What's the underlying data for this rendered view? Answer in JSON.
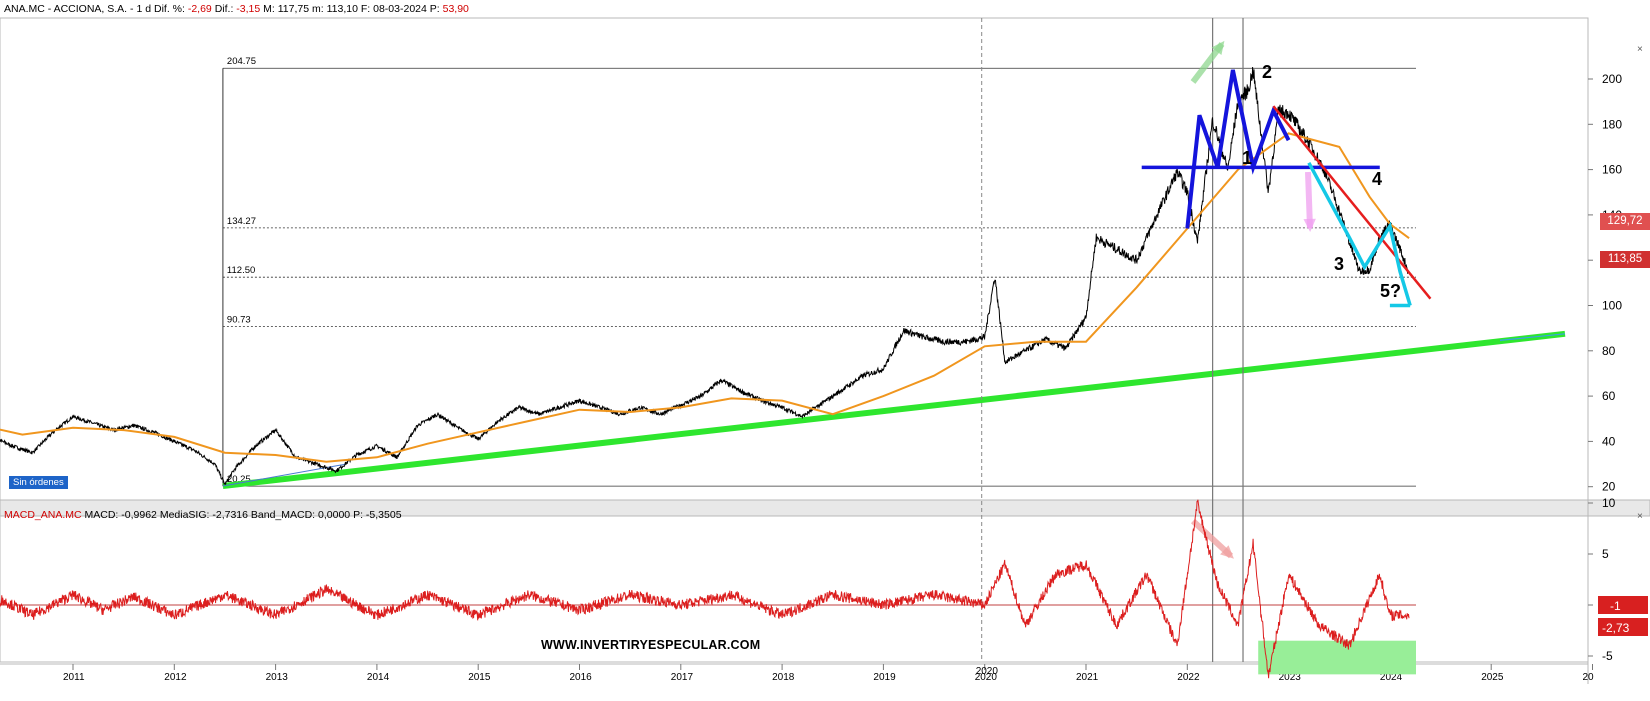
{
  "header": {
    "symbol": "ANA.MC - ACCIONA, S.A. -",
    "timeframe": "1 d",
    "dif_pct_label": "Dif. %:",
    "dif_pct": "-2,69",
    "dif_label": "Dif.:",
    "dif": "-3,15",
    "max_label": "M:",
    "max": "117,75",
    "min_label": "m:",
    "min": "113,10",
    "date_label": "F:",
    "date": "08-03-2024",
    "p_label": "P:",
    "p": "53,90"
  },
  "macd_header": {
    "name": "MACD_ANA.MC",
    "macd_label": "MACD:",
    "macd": "-0,9962",
    "sig_label": "MediaSIG:",
    "sig": "-2,7316",
    "band_label": "Band_MACD:",
    "band": "0,0000",
    "p_label": "P:",
    "p": "-5,3505"
  },
  "badge": "Sin órdenes",
  "watermark": "WWW.INVERTIRYESPECULAR.COM",
  "price_tags": {
    "ma": "129,72",
    "last": "113,85"
  },
  "macd_tags": {
    "macd": "-1",
    "signal": "-2,73"
  },
  "annotations": {
    "w1": "1",
    "w2": "2",
    "w3": "3",
    "w4": "4",
    "w5": "5?"
  },
  "controls": {
    "top": "×",
    "bottom": "×"
  },
  "colors": {
    "price": "#000000",
    "ma": "#f0961e",
    "macd": "#dc1e1e",
    "trend": "#2ee62e",
    "pattern": "#1414dc",
    "wave": "#14c8e6",
    "resistance": "#e61e1e",
    "tag_ma": "#e05050",
    "tag_last": "#d03030"
  },
  "chart_data": [
    {
      "type": "line",
      "title": "",
      "x_ticks": [
        "2011",
        "2012",
        "2013",
        "2014",
        "2015",
        "2016",
        "2017",
        "2018",
        "2019",
        "2020",
        "2021",
        "2022",
        "2023",
        "2024",
        "2025",
        "20"
      ],
      "y_ticks": [
        20,
        40,
        60,
        80,
        100,
        120,
        140,
        160,
        180,
        200
      ],
      "ylim": [
        12,
        212
      ],
      "fib_levels": [
        {
          "label": "204.75",
          "value": 204.75
        },
        {
          "label": "134.27",
          "value": 134.27
        },
        {
          "label": "112.50",
          "value": 112.5
        },
        {
          "label": "90.73",
          "value": 90.73
        },
        {
          "label": "20.25",
          "value": 20.25
        }
      ],
      "series": [
        {
          "x": [
            2010.0,
            2010.2,
            2010.4,
            2010.6,
            2010.8,
            2011.0,
            2011.2,
            2011.4,
            2011.6,
            2011.8,
            2012.0,
            2012.2,
            2012.4,
            2012.5,
            2012.6,
            2012.8,
            2013.0,
            2013.2,
            2013.4,
            2013.6,
            2013.8,
            2014.0,
            2014.2,
            2014.4,
            2014.6,
            2014.8,
            2015.0,
            2015.2,
            2015.4,
            2015.6,
            2015.8,
            2016.0,
            2016.2,
            2016.4,
            2016.6,
            2016.8,
            2017.0,
            2017.2,
            2017.4,
            2017.6,
            2017.8,
            2018.0,
            2018.2,
            2018.4,
            2018.6,
            2018.8,
            2019.0,
            2019.2,
            2019.4,
            2019.6,
            2019.8,
            2020.0,
            2020.1,
            2020.2,
            2020.4,
            2020.6,
            2020.8,
            2021.0,
            2021.1,
            2021.3,
            2021.5,
            2021.7,
            2021.9,
            2022.0,
            2022.1,
            2022.25,
            2022.4,
            2022.5,
            2022.6,
            2022.65,
            2022.8,
            2022.9,
            2023.0,
            2023.2,
            2023.35,
            2023.5,
            2023.6,
            2023.7,
            2023.8,
            2023.9,
            2024.0,
            2024.1,
            2024.19
          ],
          "values": [
            44,
            42,
            38,
            35,
            44,
            51,
            48,
            45,
            47,
            44,
            40,
            36,
            30,
            21,
            28,
            38,
            45,
            33,
            30,
            27,
            34,
            38,
            33,
            47,
            52,
            46,
            41,
            49,
            55,
            52,
            55,
            58,
            55,
            52,
            55,
            52,
            56,
            60,
            67,
            62,
            58,
            55,
            51,
            57,
            63,
            69,
            72,
            89,
            86,
            84,
            84,
            86,
            113,
            75,
            80,
            85,
            81,
            95,
            130,
            125,
            120,
            140,
            159,
            150,
            128,
            182,
            160,
            190,
            195,
            204,
            150,
            186,
            185,
            172,
            160,
            142,
            128,
            115,
            116,
            130,
            136,
            125,
            114
          ]
        },
        {
          "x": [
            2010.0,
            2010.5,
            2011.0,
            2011.5,
            2012.0,
            2012.5,
            2013.0,
            2013.5,
            2014.0,
            2014.5,
            2015.0,
            2015.5,
            2016.0,
            2016.5,
            2017.0,
            2017.5,
            2018.0,
            2018.5,
            2019.0,
            2019.5,
            2020.0,
            2020.5,
            2021.0,
            2021.5,
            2022.0,
            2022.5,
            2023.0,
            2023.5,
            2023.8,
            2024.0,
            2024.19
          ],
          "values": [
            48,
            43,
            46,
            45,
            42,
            35,
            34,
            31,
            33,
            39,
            44,
            49,
            54,
            53,
            55,
            59,
            58,
            52,
            60,
            69,
            82,
            84,
            84,
            108,
            134,
            160,
            176,
            170,
            148,
            136,
            129.72
          ]
        }
      ]
    },
    {
      "type": "line",
      "title": "",
      "y_ticks": [
        10,
        5,
        0,
        -5
      ],
      "ylim": [
        -8,
        11
      ],
      "series": [
        {
          "x": [
            2010.0,
            2010.3,
            2010.6,
            2011.0,
            2011.3,
            2011.6,
            2012.0,
            2012.5,
            2013.0,
            2013.5,
            2014.0,
            2014.5,
            2015.0,
            2015.5,
            2016.0,
            2016.5,
            2017.0,
            2017.5,
            2018.0,
            2018.5,
            2019.0,
            2019.5,
            2020.0,
            2020.2,
            2020.4,
            2020.7,
            2021.0,
            2021.3,
            2021.6,
            2021.9,
            2022.1,
            2022.3,
            2022.5,
            2022.65,
            2022.8,
            2023.0,
            2023.3,
            2023.6,
            2023.9,
            2024.0,
            2024.19
          ],
          "values": [
            0,
            0.5,
            -1,
            1,
            -0.5,
            0.8,
            -1,
            1,
            -1,
            1.5,
            -1,
            1,
            -1,
            1,
            -0.5,
            1,
            0,
            1,
            -1,
            1,
            0,
            1,
            0,
            4,
            -2,
            3,
            4,
            -2,
            3,
            -4,
            10,
            2,
            -2,
            6,
            -7,
            3,
            -2,
            -4,
            3,
            -1,
            -1
          ]
        }
      ]
    }
  ]
}
